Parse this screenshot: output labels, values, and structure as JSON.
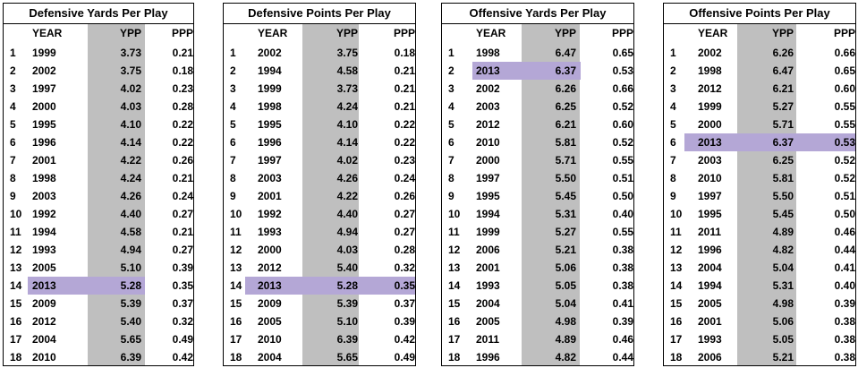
{
  "headers": {
    "year": "YEAR",
    "ypp": "YPP",
    "ppp": "PPP"
  },
  "tables": [
    {
      "title": "Defensive Yards Per Play",
      "highlight_row": 13,
      "rows": [
        {
          "rank": "1",
          "year": "1999",
          "ypp": "3.73",
          "ppp": "0.21"
        },
        {
          "rank": "2",
          "year": "2002",
          "ypp": "3.75",
          "ppp": "0.18"
        },
        {
          "rank": "3",
          "year": "1997",
          "ypp": "4.02",
          "ppp": "0.23"
        },
        {
          "rank": "4",
          "year": "2000",
          "ypp": "4.03",
          "ppp": "0.28"
        },
        {
          "rank": "5",
          "year": "1995",
          "ypp": "4.10",
          "ppp": "0.22"
        },
        {
          "rank": "6",
          "year": "1996",
          "ypp": "4.14",
          "ppp": "0.22"
        },
        {
          "rank": "7",
          "year": "2001",
          "ypp": "4.22",
          "ppp": "0.26"
        },
        {
          "rank": "8",
          "year": "1998",
          "ypp": "4.24",
          "ppp": "0.21"
        },
        {
          "rank": "9",
          "year": "2003",
          "ypp": "4.26",
          "ppp": "0.24"
        },
        {
          "rank": "10",
          "year": "1992",
          "ypp": "4.40",
          "ppp": "0.27"
        },
        {
          "rank": "11",
          "year": "1994",
          "ypp": "4.58",
          "ppp": "0.21"
        },
        {
          "rank": "12",
          "year": "1993",
          "ypp": "4.94",
          "ppp": "0.27"
        },
        {
          "rank": "13",
          "year": "2005",
          "ypp": "5.10",
          "ppp": "0.39"
        },
        {
          "rank": "14",
          "year": "2013",
          "ypp": "5.28",
          "ppp": "0.35"
        },
        {
          "rank": "15",
          "year": "2009",
          "ypp": "5.39",
          "ppp": "0.37"
        },
        {
          "rank": "16",
          "year": "2012",
          "ypp": "5.40",
          "ppp": "0.32"
        },
        {
          "rank": "17",
          "year": "2004",
          "ypp": "5.65",
          "ppp": "0.49"
        },
        {
          "rank": "18",
          "year": "2010",
          "ypp": "6.39",
          "ppp": "0.42"
        }
      ]
    },
    {
      "title": "Defensive Points Per Play",
      "highlight_row": 13,
      "rows": [
        {
          "rank": "1",
          "year": "2002",
          "ypp": "3.75",
          "ppp": "0.18"
        },
        {
          "rank": "2",
          "year": "1994",
          "ypp": "4.58",
          "ppp": "0.21"
        },
        {
          "rank": "3",
          "year": "1999",
          "ypp": "3.73",
          "ppp": "0.21"
        },
        {
          "rank": "4",
          "year": "1998",
          "ypp": "4.24",
          "ppp": "0.21"
        },
        {
          "rank": "5",
          "year": "1995",
          "ypp": "4.10",
          "ppp": "0.22"
        },
        {
          "rank": "6",
          "year": "1996",
          "ypp": "4.14",
          "ppp": "0.22"
        },
        {
          "rank": "7",
          "year": "1997",
          "ypp": "4.02",
          "ppp": "0.23"
        },
        {
          "rank": "8",
          "year": "2003",
          "ypp": "4.26",
          "ppp": "0.24"
        },
        {
          "rank": "9",
          "year": "2001",
          "ypp": "4.22",
          "ppp": "0.26"
        },
        {
          "rank": "10",
          "year": "1992",
          "ypp": "4.40",
          "ppp": "0.27"
        },
        {
          "rank": "11",
          "year": "1993",
          "ypp": "4.94",
          "ppp": "0.27"
        },
        {
          "rank": "12",
          "year": "2000",
          "ypp": "4.03",
          "ppp": "0.28"
        },
        {
          "rank": "13",
          "year": "2012",
          "ypp": "5.40",
          "ppp": "0.32"
        },
        {
          "rank": "14",
          "year": "2013",
          "ypp": "5.28",
          "ppp": "0.35"
        },
        {
          "rank": "15",
          "year": "2009",
          "ypp": "5.39",
          "ppp": "0.37"
        },
        {
          "rank": "16",
          "year": "2005",
          "ypp": "5.10",
          "ppp": "0.39"
        },
        {
          "rank": "17",
          "year": "2010",
          "ypp": "6.39",
          "ppp": "0.42"
        },
        {
          "rank": "18",
          "year": "2004",
          "ypp": "5.65",
          "ppp": "0.49"
        }
      ]
    },
    {
      "title": "Offensive Yards Per Play",
      "highlight_row": 1,
      "rows": [
        {
          "rank": "1",
          "year": "1998",
          "ypp": "6.47",
          "ppp": "0.65"
        },
        {
          "rank": "2",
          "year": "2013",
          "ypp": "6.37",
          "ppp": "0.53"
        },
        {
          "rank": "3",
          "year": "2002",
          "ypp": "6.26",
          "ppp": "0.66"
        },
        {
          "rank": "4",
          "year": "2003",
          "ypp": "6.25",
          "ppp": "0.52"
        },
        {
          "rank": "5",
          "year": "2012",
          "ypp": "6.21",
          "ppp": "0.60"
        },
        {
          "rank": "6",
          "year": "2010",
          "ypp": "5.81",
          "ppp": "0.52"
        },
        {
          "rank": "7",
          "year": "2000",
          "ypp": "5.71",
          "ppp": "0.55"
        },
        {
          "rank": "8",
          "year": "1997",
          "ypp": "5.50",
          "ppp": "0.51"
        },
        {
          "rank": "9",
          "year": "1995",
          "ypp": "5.45",
          "ppp": "0.50"
        },
        {
          "rank": "10",
          "year": "1994",
          "ypp": "5.31",
          "ppp": "0.40"
        },
        {
          "rank": "11",
          "year": "1999",
          "ypp": "5.27",
          "ppp": "0.55"
        },
        {
          "rank": "12",
          "year": "2006",
          "ypp": "5.21",
          "ppp": "0.38"
        },
        {
          "rank": "13",
          "year": "2001",
          "ypp": "5.06",
          "ppp": "0.38"
        },
        {
          "rank": "14",
          "year": "1993",
          "ypp": "5.05",
          "ppp": "0.38"
        },
        {
          "rank": "15",
          "year": "2004",
          "ypp": "5.04",
          "ppp": "0.41"
        },
        {
          "rank": "16",
          "year": "2005",
          "ypp": "4.98",
          "ppp": "0.39"
        },
        {
          "rank": "17",
          "year": "2011",
          "ypp": "4.89",
          "ppp": "0.46"
        },
        {
          "rank": "18",
          "year": "1996",
          "ypp": "4.82",
          "ppp": "0.44"
        }
      ]
    },
    {
      "title": "Offensive Points Per Play",
      "highlight_row": 5,
      "rows": [
        {
          "rank": "1",
          "year": "2002",
          "ypp": "6.26",
          "ppp": "0.66"
        },
        {
          "rank": "2",
          "year": "1998",
          "ypp": "6.47",
          "ppp": "0.65"
        },
        {
          "rank": "3",
          "year": "2012",
          "ypp": "6.21",
          "ppp": "0.60"
        },
        {
          "rank": "4",
          "year": "1999",
          "ypp": "5.27",
          "ppp": "0.55"
        },
        {
          "rank": "5",
          "year": "2000",
          "ypp": "5.71",
          "ppp": "0.55"
        },
        {
          "rank": "6",
          "year": "2013",
          "ypp": "6.37",
          "ppp": "0.53"
        },
        {
          "rank": "7",
          "year": "2003",
          "ypp": "6.25",
          "ppp": "0.52"
        },
        {
          "rank": "8",
          "year": "2010",
          "ypp": "5.81",
          "ppp": "0.52"
        },
        {
          "rank": "9",
          "year": "1997",
          "ypp": "5.50",
          "ppp": "0.51"
        },
        {
          "rank": "10",
          "year": "1995",
          "ypp": "5.45",
          "ppp": "0.50"
        },
        {
          "rank": "11",
          "year": "2011",
          "ypp": "4.89",
          "ppp": "0.46"
        },
        {
          "rank": "12",
          "year": "1996",
          "ypp": "4.82",
          "ppp": "0.44"
        },
        {
          "rank": "13",
          "year": "2004",
          "ypp": "5.04",
          "ppp": "0.41"
        },
        {
          "rank": "14",
          "year": "1994",
          "ypp": "5.31",
          "ppp": "0.40"
        },
        {
          "rank": "15",
          "year": "2005",
          "ypp": "4.98",
          "ppp": "0.39"
        },
        {
          "rank": "16",
          "year": "2001",
          "ypp": "5.06",
          "ppp": "0.38"
        },
        {
          "rank": "17",
          "year": "1993",
          "ypp": "5.05",
          "ppp": "0.38"
        },
        {
          "rank": "18",
          "year": "2006",
          "ypp": "5.21",
          "ppp": "0.38"
        }
      ]
    }
  ],
  "colors": {
    "gray_column": "#bfbfbf",
    "highlight": "#b4a7d6"
  }
}
